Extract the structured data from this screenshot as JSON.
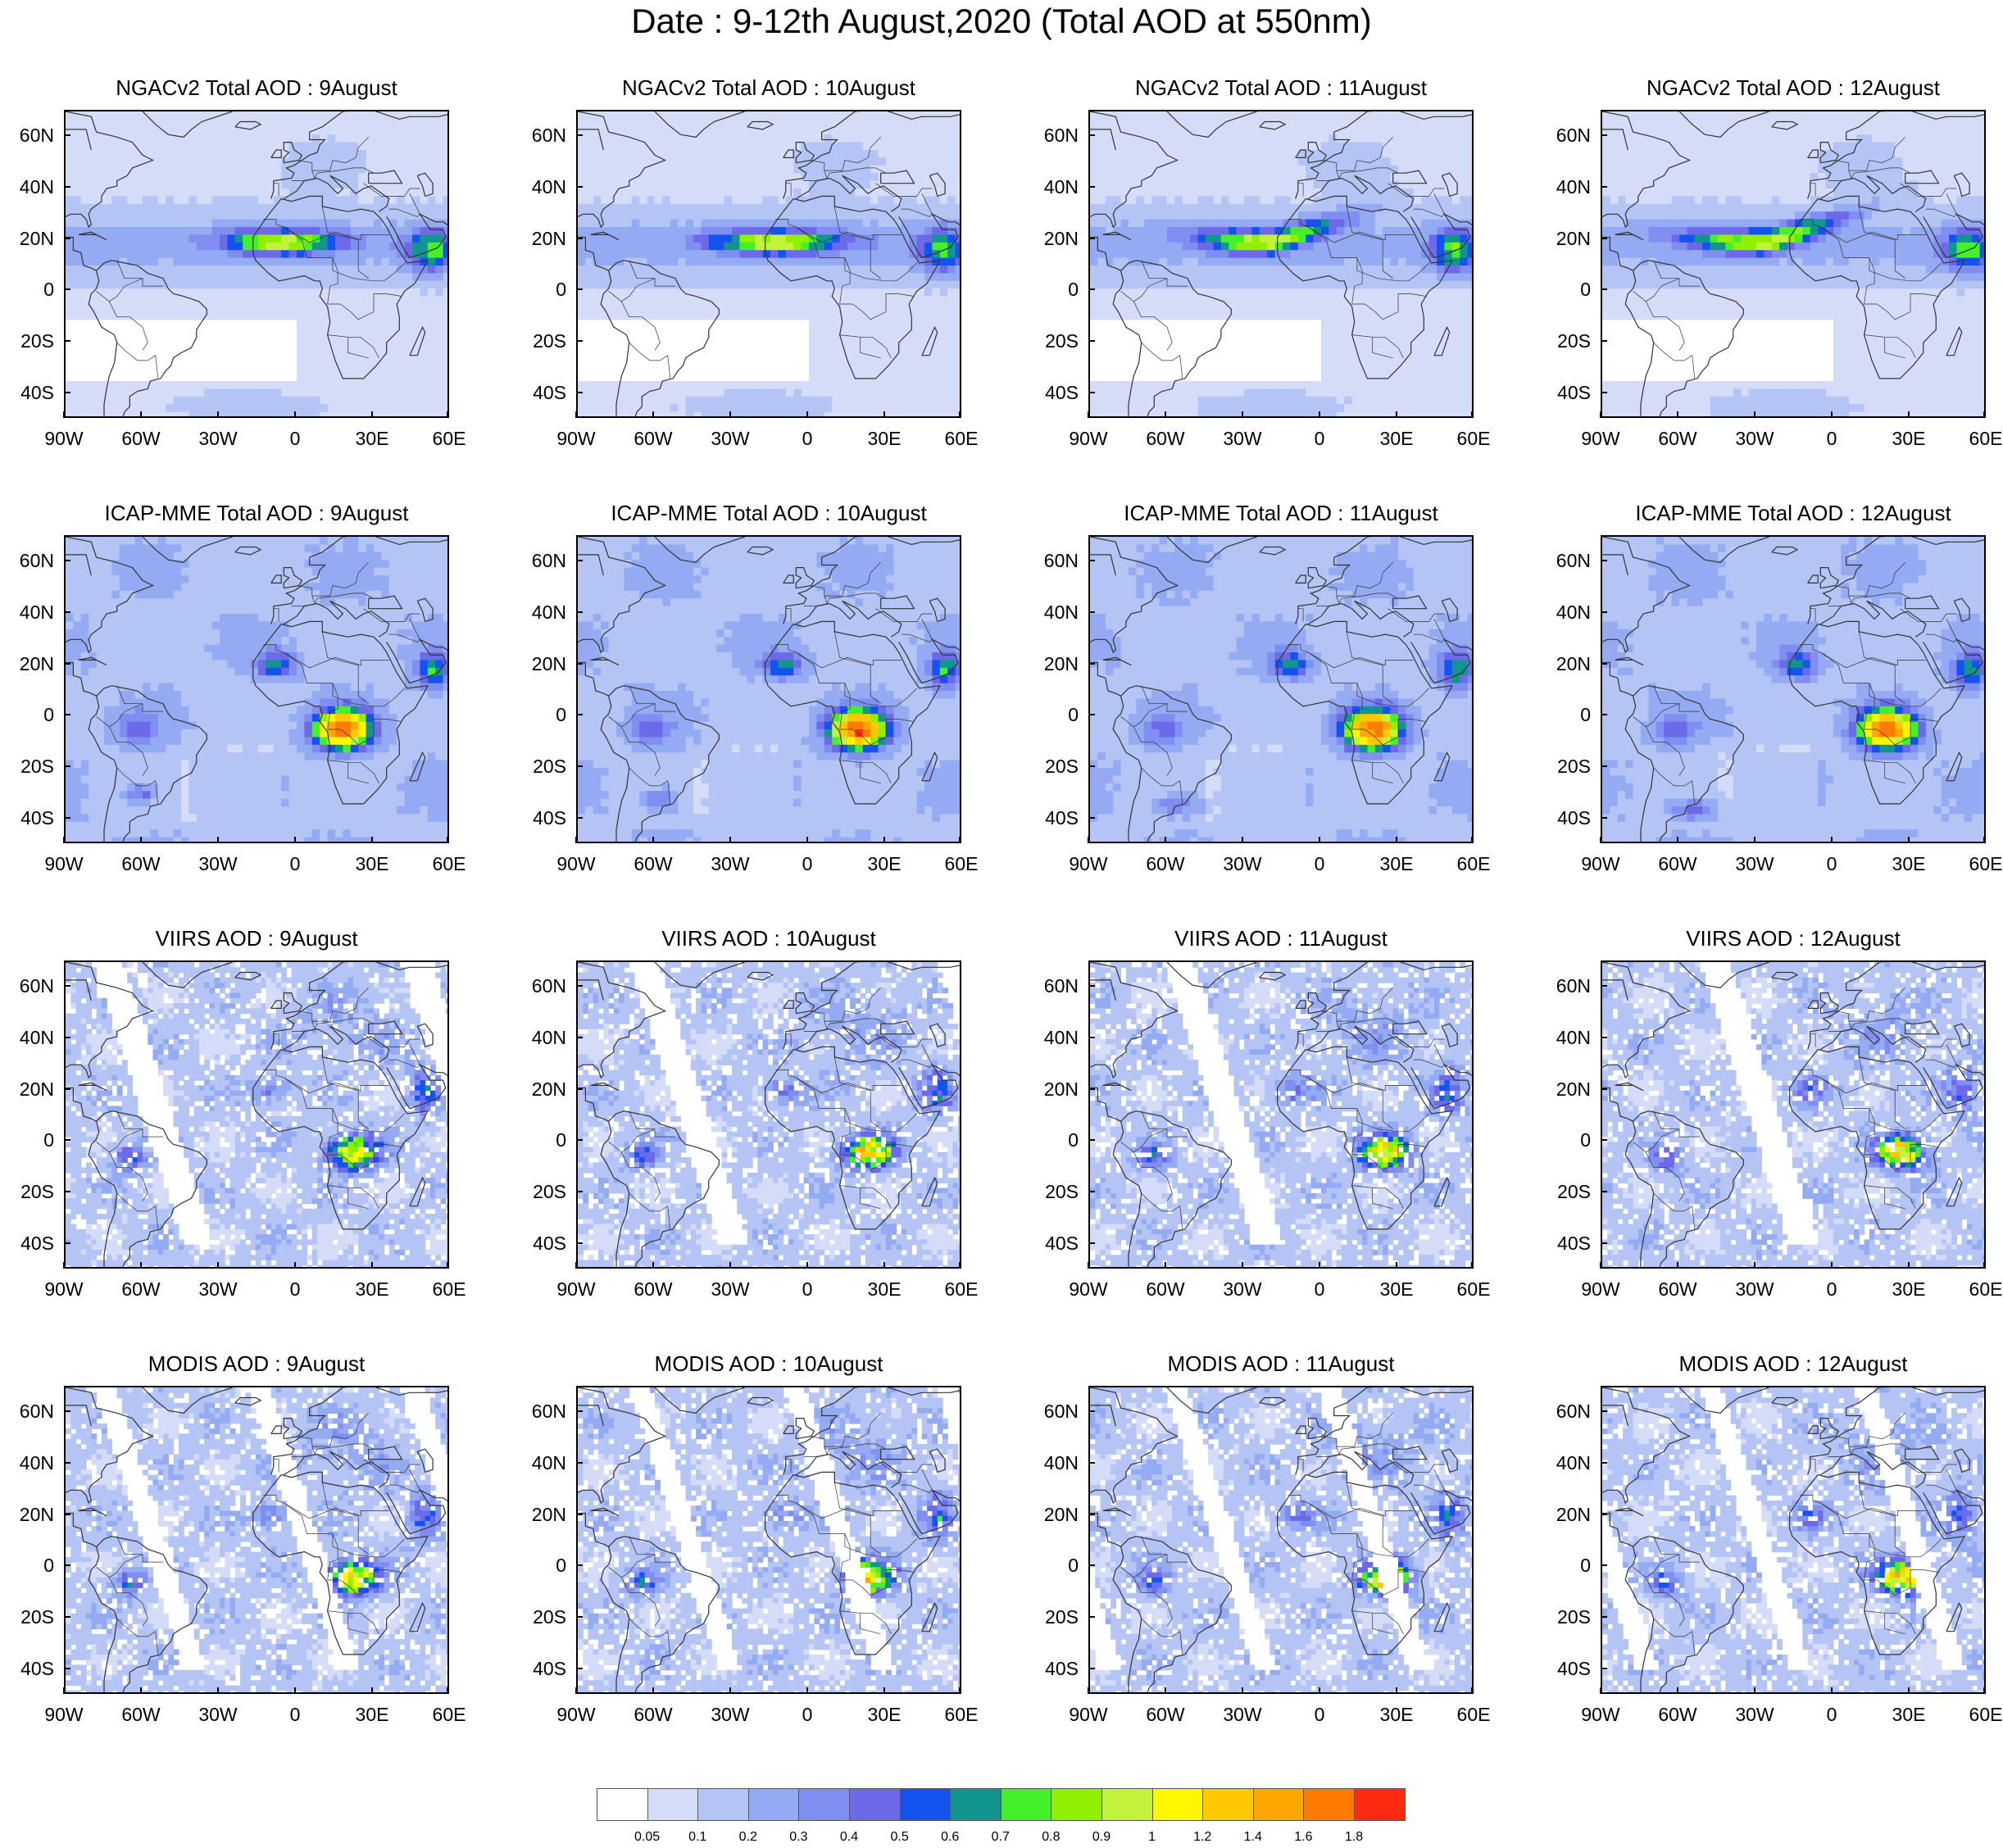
{
  "title": "Date : 9-12th August,2020 (Total AOD at 550nm)",
  "panels": [
    {
      "title": "NGACv2 Total AOD : 9August",
      "product": "ngac",
      "day": 9
    },
    {
      "title": "NGACv2 Total AOD : 10August",
      "product": "ngac",
      "day": 10
    },
    {
      "title": "NGACv2 Total AOD : 11August",
      "product": "ngac",
      "day": 11
    },
    {
      "title": "NGACv2 Total AOD : 12August",
      "product": "ngac",
      "day": 12
    },
    {
      "title": "ICAP-MME Total AOD : 9August",
      "product": "icap",
      "day": 9
    },
    {
      "title": "ICAP-MME Total AOD : 10August",
      "product": "icap",
      "day": 10
    },
    {
      "title": "ICAP-MME Total AOD : 11August",
      "product": "icap",
      "day": 11
    },
    {
      "title": "ICAP-MME Total AOD : 12August",
      "product": "icap",
      "day": 12
    },
    {
      "title": "VIIRS AOD : 9August",
      "product": "viirs",
      "day": 9
    },
    {
      "title": "VIIRS AOD : 10August",
      "product": "viirs",
      "day": 10
    },
    {
      "title": "VIIRS AOD : 11August",
      "product": "viirs",
      "day": 11
    },
    {
      "title": "VIIRS AOD : 12August",
      "product": "viirs",
      "day": 12
    },
    {
      "title": "MODIS AOD : 9August",
      "product": "modis",
      "day": 9
    },
    {
      "title": "MODIS AOD : 10August",
      "product": "modis",
      "day": 10
    },
    {
      "title": "MODIS AOD : 11August",
      "product": "modis",
      "day": 11
    },
    {
      "title": "MODIS AOD : 12August",
      "product": "modis",
      "day": 12
    }
  ],
  "lat_ticks": [
    {
      "label": "60N",
      "lat": 60
    },
    {
      "label": "40N",
      "lat": 40
    },
    {
      "label": "20N",
      "lat": 20
    },
    {
      "label": "0",
      "lat": 0
    },
    {
      "label": "20S",
      "lat": -20
    },
    {
      "label": "40S",
      "lat": -40
    }
  ],
  "lon_ticks": [
    {
      "label": "90W",
      "lon": -90
    },
    {
      "label": "60W",
      "lon": -60
    },
    {
      "label": "30W",
      "lon": -30
    },
    {
      "label": "0",
      "lon": 0
    },
    {
      "label": "30E",
      "lon": 30
    },
    {
      "label": "60E",
      "lon": 60
    }
  ],
  "map_extent": {
    "lon_min": -90,
    "lon_max": 60,
    "lat_min": -50,
    "lat_max": 70
  },
  "colorbar": {
    "colors": [
      "#ffffff",
      "#d5dcf8",
      "#b4c4f4",
      "#94aaf2",
      "#7f8ef0",
      "#6c6ae8",
      "#1553f0",
      "#13958f",
      "#44f02a",
      "#90f000",
      "#c2f33a",
      "#fff700",
      "#ffc800",
      "#ffa600",
      "#ff7a00",
      "#ff2a12"
    ],
    "labels": [
      "0.05",
      "0.1",
      "0.2",
      "0.3",
      "0.4",
      "0.5",
      "0.6",
      "0.7",
      "0.8",
      "0.9",
      "1",
      "1.2",
      "1.4",
      "1.6",
      "1.8"
    ]
  }
}
